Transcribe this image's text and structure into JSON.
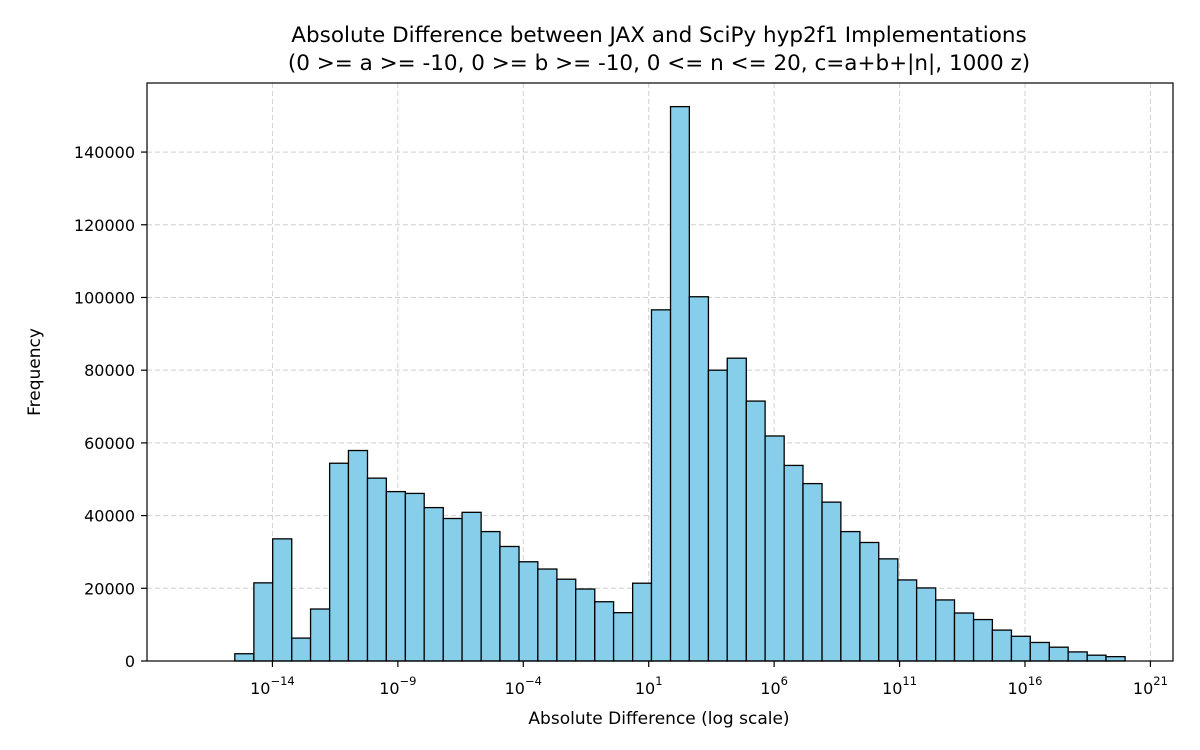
{
  "chart_data": {
    "type": "bar",
    "title": "Absolute Difference between JAX and SciPy hyp2f1 Implementations",
    "subtitle": "(0 >= a >= -10, 0 >= b >= -10, 0 <= n <= 20, c=a+b+|n|, 1000 z)",
    "xlabel": "Absolute Difference (log scale)",
    "ylabel": "Frequency",
    "x_scale": "log",
    "x_log10_range": [
      -19,
      21.9
    ],
    "ylim": [
      0,
      159000
    ],
    "grid": true,
    "bar_color": "#87CEEB",
    "edge_color": "#000000",
    "x_ticks": [
      {
        "base": "10",
        "exp": "−14",
        "log10": -14
      },
      {
        "base": "10",
        "exp": "−9",
        "log10": -9
      },
      {
        "base": "10",
        "exp": "−4",
        "log10": -4
      },
      {
        "base": "10",
        "exp": "1",
        "log10": 1
      },
      {
        "base": "10",
        "exp": "6",
        "log10": 6
      },
      {
        "base": "10",
        "exp": "11",
        "log10": 11
      },
      {
        "base": "10",
        "exp": "16",
        "log10": 16
      },
      {
        "base": "10",
        "exp": "21",
        "log10": 21
      }
    ],
    "y_ticks": [
      {
        "label": "0",
        "value": 0
      },
      {
        "label": "20000",
        "value": 20000
      },
      {
        "label": "40000",
        "value": 40000
      },
      {
        "label": "60000",
        "value": 60000
      },
      {
        "label": "80000",
        "value": 80000
      },
      {
        "label": "100000",
        "value": 100000
      },
      {
        "label": "120000",
        "value": 120000
      },
      {
        "label": "140000",
        "value": 140000
      }
    ],
    "bins_log10_edges": [
      -15.5,
      -14.74,
      -13.99,
      -13.23,
      -12.48,
      -11.72,
      -10.97,
      -10.21,
      -9.46,
      -8.7,
      -7.95,
      -7.19,
      -6.44,
      -5.68,
      -4.93,
      -4.17,
      -3.42,
      -2.66,
      -1.91,
      -1.15,
      -0.4,
      0.36,
      1.11,
      1.87,
      2.62,
      3.38,
      4.13,
      4.89,
      5.64,
      6.4,
      7.15,
      7.91,
      8.66,
      9.42,
      10.17,
      10.93,
      11.68,
      12.44,
      13.19,
      13.95,
      14.7,
      15.46,
      16.21,
      16.97,
      17.72,
      18.48,
      19.23,
      19.99
    ],
    "values": [
      2000,
      21500,
      33600,
      6300,
      14300,
      54400,
      57900,
      50300,
      46600,
      46100,
      42200,
      39200,
      40900,
      35600,
      31500,
      27300,
      25300,
      22500,
      19800,
      16300,
      13300,
      21400,
      96600,
      152500,
      100200,
      80000,
      83300,
      71500,
      61900,
      53800,
      48800,
      43700,
      35600,
      32600,
      28100,
      22300,
      20100,
      16800,
      13200,
      11400,
      8500,
      6800,
      5100,
      3800,
      2500,
      1600,
      1200,
      500
    ]
  }
}
